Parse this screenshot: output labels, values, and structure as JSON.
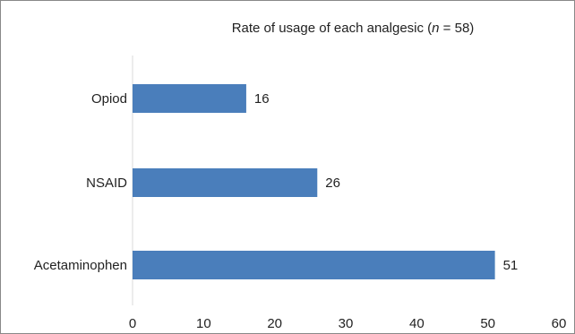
{
  "chart_data": {
    "type": "bar",
    "orientation": "horizontal",
    "title_prefix": "Rate of usage of each analgesic (",
    "title_n_var": "n",
    "title_suffix": " = 58)",
    "categories": [
      "Opiod",
      "NSAID",
      "Acetaminophen"
    ],
    "values": [
      16,
      26,
      51
    ],
    "data_labels": [
      "16",
      "26",
      "51"
    ],
    "xlim": [
      0,
      60
    ],
    "x_ticks": [
      0,
      10,
      20,
      30,
      40,
      50,
      60
    ],
    "x_tick_labels": [
      "0",
      "10",
      "20",
      "30",
      "40",
      "50",
      "60"
    ],
    "xlabel": "",
    "ylabel": "",
    "grid": false,
    "legend": "none",
    "bar_color": "#4a7ebb"
  }
}
